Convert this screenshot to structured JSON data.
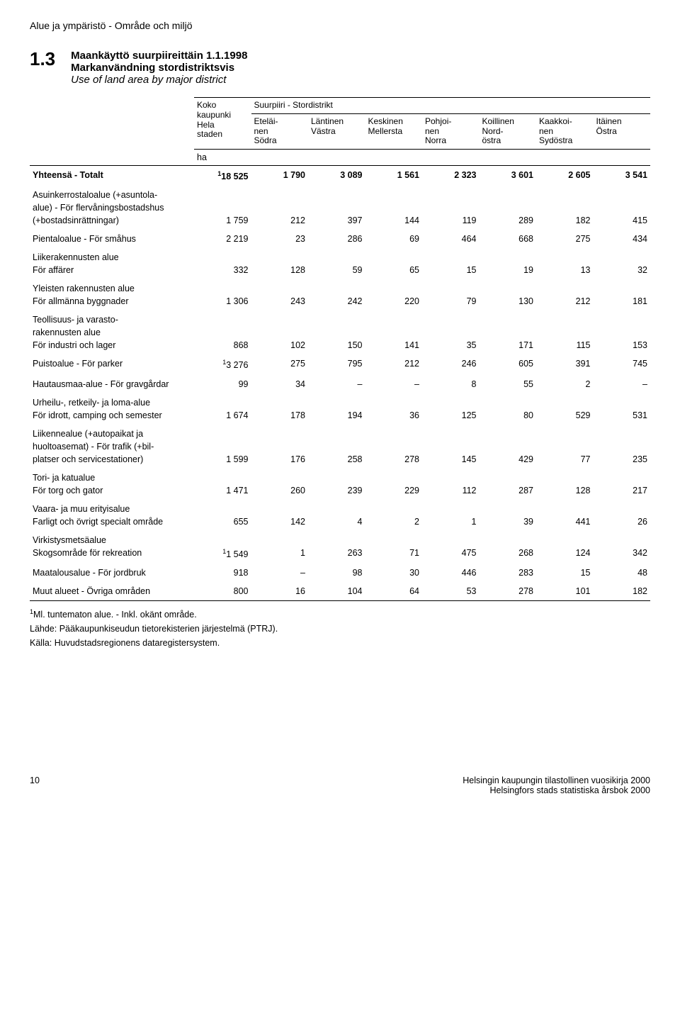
{
  "breadcrumb": "Alue ja ympäristö - Område och miljö",
  "section_number": "1.3",
  "titles": {
    "fi": "Maankäyttö suurpiireittäin 1.1.1998",
    "sv": "Markanvändning stordistriktsvis",
    "en": "Use of land area by major district"
  },
  "header": {
    "koko": "Koko\nkaupunki\nHela\nstaden",
    "span": "Suurpiiri - Stordistrikt",
    "cols": [
      "Eteläi-\nnen\nSödra",
      "Läntinen\nVästra",
      "Keskinen\nMellersta",
      "Pohjoi-\nnen\nNorra",
      "Koillinen\nNord-\nöstra",
      "Kaakkoi-\nnen\nSydöstra",
      "Itäinen\nÖstra"
    ],
    "unit": "ha"
  },
  "rows": [
    {
      "label": "Yhteensä - Totalt",
      "sup": "1",
      "vals": [
        "18 525",
        "1 790",
        "3 089",
        "1 561",
        "2 323",
        "3 601",
        "2 605",
        "3 541"
      ],
      "total": true
    },
    {
      "label": "Asuinkerrostaloalue (+asuntola-\nalue) - För flervåningsbostadshus\n(+bostadsinrättningar)",
      "vals": [
        "1 759",
        "212",
        "397",
        "144",
        "119",
        "289",
        "182",
        "415"
      ],
      "group": true
    },
    {
      "label": "Pientaloalue - För småhus",
      "vals": [
        "2 219",
        "23",
        "286",
        "69",
        "464",
        "668",
        "275",
        "434"
      ],
      "group": true
    },
    {
      "label": "Liikerakennusten alue\nFör affärer",
      "vals": [
        "332",
        "128",
        "59",
        "65",
        "15",
        "19",
        "13",
        "32"
      ],
      "group": true
    },
    {
      "label": "Yleisten rakennusten alue\nFör allmänna byggnader",
      "vals": [
        "1 306",
        "243",
        "242",
        "220",
        "79",
        "130",
        "212",
        "181"
      ],
      "group": true
    },
    {
      "label": "Teollisuus- ja varasto-\nrakennusten alue\nFör industri och lager",
      "vals": [
        "868",
        "102",
        "150",
        "141",
        "35",
        "171",
        "115",
        "153"
      ],
      "group": true
    },
    {
      "label": "Puistoalue - För parker",
      "sup": "1",
      "vals": [
        "3 276",
        "275",
        "795",
        "212",
        "246",
        "605",
        "391",
        "745"
      ],
      "group": true
    },
    {
      "label": "Hautausmaa-alue - För gravgårdar",
      "vals": [
        "99",
        "34",
        "–",
        "–",
        "8",
        "55",
        "2",
        "–"
      ],
      "group": true
    },
    {
      "label": "Urheilu-, retkeily- ja loma-alue\nFör idrott, camping och semester",
      "vals": [
        "1 674",
        "178",
        "194",
        "36",
        "125",
        "80",
        "529",
        "531"
      ],
      "group": true
    },
    {
      "label": "Liikennealue (+autopaikat ja\nhuoltoasemat) - För trafik (+bil-\nplatser och servicestationer)",
      "vals": [
        "1 599",
        "176",
        "258",
        "278",
        "145",
        "429",
        "77",
        "235"
      ],
      "group": true
    },
    {
      "label": "Tori- ja katualue\nFör torg och gator",
      "vals": [
        "1 471",
        "260",
        "239",
        "229",
        "112",
        "287",
        "128",
        "217"
      ],
      "group": true
    },
    {
      "label": "Vaara- ja muu erityisalue\nFarligt och övrigt specialt område",
      "vals": [
        "655",
        "142",
        "4",
        "2",
        "1",
        "39",
        "441",
        "26"
      ],
      "group": true
    },
    {
      "label": "Virkistysmetsäalue\nSkogsområde för rekreation",
      "sup": "1",
      "vals": [
        "1 549",
        "1",
        "263",
        "71",
        "475",
        "268",
        "124",
        "342"
      ],
      "group": true
    },
    {
      "label": "Maatalousalue - För jordbruk",
      "vals": [
        "918",
        "–",
        "98",
        "30",
        "446",
        "283",
        "15",
        "48"
      ],
      "group": true
    },
    {
      "label": "Muut alueet - Övriga områden",
      "vals": [
        "800",
        "16",
        "104",
        "64",
        "53",
        "278",
        "101",
        "182"
      ],
      "group": true,
      "last": true
    }
  ],
  "footnotes": {
    "n1": "Ml. tuntematon alue. - Inkl. okänt område.",
    "source_fi": "Lähde: Pääkaupunkiseudun tietorekisterien järjestelmä (PTRJ).",
    "source_sv": "Källa: Huvudstadsregionens dataregistersystem."
  },
  "footer": {
    "page": "10",
    "right1": "Helsingin kaupungin tilastollinen vuosikirja 2000",
    "right2": "Helsingfors stads statistiska årsbok 2000"
  },
  "colors": {
    "text": "#000000",
    "bg": "#ffffff",
    "rule": "#000000"
  }
}
